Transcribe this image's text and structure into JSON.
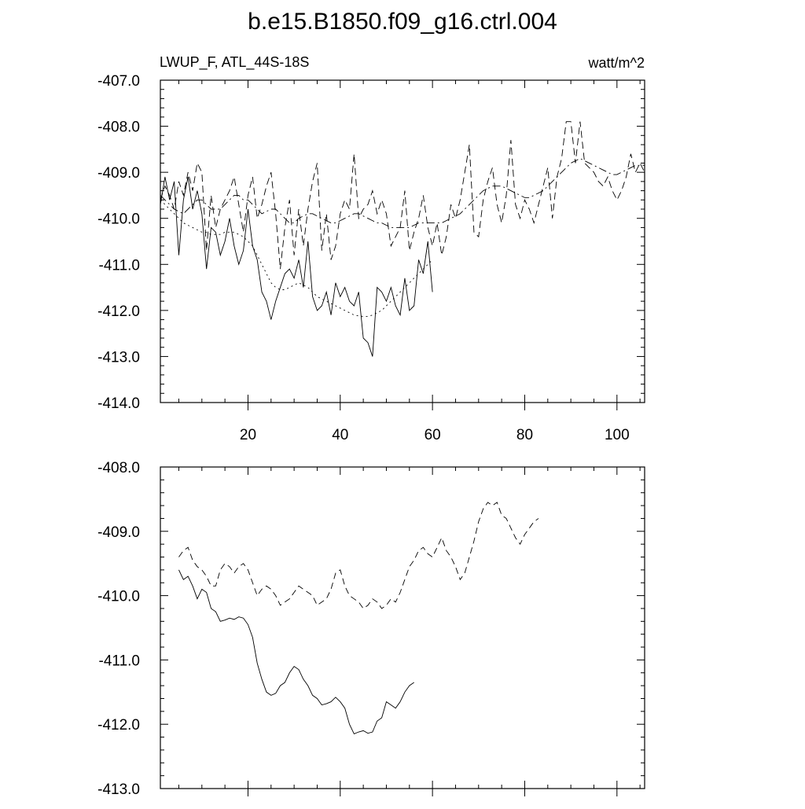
{
  "chart_data": [
    {
      "type": "line",
      "title": "b.e15.B1850.f09_g16.ctrl.004",
      "left_label": "LWUP_F, ATL_44S-18S",
      "right_label": "watt/m^2",
      "xlim": [
        1,
        106
      ],
      "ylim": [
        -414,
        -407
      ],
      "x_ticks": [
        20,
        40,
        60,
        80,
        100
      ],
      "y_ticks": [
        -414,
        -413,
        -412,
        -411,
        -410,
        -409,
        -408,
        -407
      ],
      "series": [
        {
          "style": "solid",
          "x_start": 1,
          "values": [
            -409.7,
            -409.1,
            -409.6,
            -409.2,
            -410.8,
            -409.6,
            -409.1,
            -409.8,
            -409.4,
            -409.9,
            -411.1,
            -410.2,
            -410.3,
            -410.8,
            -410.5,
            -410.0,
            -410.6,
            -411.0,
            -410.7,
            -409.8,
            -410.6,
            -410.9,
            -411.6,
            -411.8,
            -412.2,
            -411.8,
            -411.5,
            -411.2,
            -411.1,
            -411.3,
            -410.9,
            -411.5,
            -410.5,
            -411.7,
            -412.0,
            -411.9,
            -411.6,
            -412.1,
            -411.4,
            -411.7,
            -411.5,
            -411.8,
            -411.9,
            -411.6,
            -412.6,
            -412.7,
            -413.0,
            -411.5,
            -411.6,
            -411.8,
            -411.5,
            -411.9,
            -412.1,
            -411.3,
            -412.0,
            -411.9,
            -410.9,
            -411.2,
            -410.5,
            -411.6
          ]
        },
        {
          "style": "long-dash",
          "x_start": 1,
          "values": [
            -409.6,
            -409.3,
            -409.5,
            -409.8,
            -409.2,
            -409.5,
            -409.0,
            -409.4,
            -408.8,
            -409.0,
            -410.7,
            -409.5,
            -410.2,
            -409.8,
            -409.6,
            -409.4,
            -409.1,
            -409.7,
            -410.3,
            -409.5,
            -409.1,
            -410.0,
            -409.7,
            -409.3,
            -409.0,
            -409.9,
            -411.1,
            -410.2,
            -409.6,
            -410.8,
            -409.8,
            -410.6,
            -409.8,
            -409.2,
            -408.8,
            -410.7,
            -409.9,
            -410.9,
            -410.6,
            -409.9,
            -409.6,
            -409.8,
            -408.6,
            -410.0,
            -409.8,
            -409.7,
            -409.4,
            -409.9,
            -409.6,
            -409.9,
            -410.6,
            -410.4,
            -410.2,
            -409.4,
            -410.7,
            -410.3,
            -410.0,
            -409.5,
            -410.2,
            -410.6,
            -410.1,
            -410.8,
            -410.4,
            -409.7,
            -410.0,
            -409.6,
            -409.0,
            -408.4,
            -410.3,
            -410.4,
            -409.6,
            -409.2,
            -408.9,
            -409.7,
            -410.1,
            -409.5,
            -408.3,
            -409.7,
            -410.0,
            -409.6,
            -409.8,
            -410.1,
            -409.7,
            -409.3,
            -408.9,
            -410.0,
            -409.1,
            -408.7,
            -407.9,
            -407.9,
            -408.8,
            -407.9,
            -408.8,
            -408.9,
            -409.0,
            -409.2,
            -409.3,
            -409.1,
            -409.4,
            -409.6,
            -409.4,
            -409.1,
            -408.6,
            -409.0,
            -408.8,
            -409.0
          ]
        },
        {
          "style": "dash-dot",
          "x_start": 1,
          "values": [
            -409.5,
            -409.6,
            -409.7,
            -409.8,
            -409.85,
            -409.9,
            -409.8,
            -409.7,
            -409.6,
            -409.6,
            -409.7,
            -409.8,
            -409.8,
            -409.8,
            -409.7,
            -409.6,
            -409.5,
            -409.5,
            -409.6,
            -409.6,
            -409.7,
            -409.8,
            -409.9,
            -409.85,
            -409.8,
            -409.8,
            -409.9,
            -410.0,
            -410.1,
            -410.1,
            -410.0,
            -409.95,
            -409.9,
            -409.9,
            -409.95,
            -410.0,
            -410.05,
            -410.1,
            -410.1,
            -410.05,
            -410.0,
            -409.95,
            -409.9,
            -409.9,
            -409.95,
            -410.0,
            -410.05,
            -410.1,
            -410.1,
            -410.15,
            -410.2,
            -410.2,
            -410.2,
            -410.2,
            -410.2,
            -410.15,
            -410.1,
            -410.1,
            -410.1,
            -410.1,
            -410.1,
            -410.1,
            -410.05,
            -410.0,
            -409.95,
            -409.9,
            -409.8,
            -409.7,
            -409.6,
            -409.5,
            -409.4,
            -409.35,
            -409.3,
            -409.3,
            -409.3,
            -409.35,
            -409.4,
            -409.45,
            -409.5,
            -409.55,
            -409.55,
            -409.5,
            -409.45,
            -409.4,
            -409.3,
            -409.2,
            -409.1,
            -409.0,
            -408.9,
            -408.8,
            -408.75,
            -408.7,
            -408.75,
            -408.8,
            -408.85,
            -408.9,
            -408.95,
            -409.0,
            -409.05,
            -409.05,
            -409.0,
            -408.95,
            -408.9,
            -408.85,
            -408.85,
            -408.85
          ]
        },
        {
          "style": "dotted",
          "x_start": 1,
          "values": [
            -409.6,
            -409.7,
            -409.8,
            -409.9,
            -410.0,
            -410.1,
            -410.15,
            -410.2,
            -410.25,
            -410.3,
            -410.3,
            -410.35,
            -410.35,
            -410.35,
            -410.3,
            -410.3,
            -410.3,
            -410.35,
            -410.4,
            -410.5,
            -410.6,
            -410.8,
            -411.0,
            -411.2,
            -411.4,
            -411.5,
            -411.55,
            -411.55,
            -411.5,
            -411.45,
            -411.4,
            -411.45,
            -411.5,
            -411.6,
            -411.7,
            -411.75,
            -411.8,
            -411.85,
            -411.9,
            -411.95,
            -412.0,
            -412.05,
            -412.1,
            -412.12,
            -412.13,
            -412.13,
            -412.1,
            -412.05,
            -412.0,
            -411.9,
            -411.8,
            -411.7,
            -411.6,
            -411.5,
            -411.4,
            -411.3,
            -411.2,
            -411.1,
            -411.0,
            -410.9
          ]
        }
      ]
    },
    {
      "type": "line",
      "xlim": [
        1,
        106
      ],
      "ylim": [
        -413,
        -408
      ],
      "y_ticks": [
        -413,
        -412,
        -411,
        -410,
        -409,
        -408
      ],
      "series": [
        {
          "style": "solid",
          "x_start": 5,
          "values": [
            -409.6,
            -409.75,
            -409.7,
            -409.85,
            -410.05,
            -409.9,
            -409.95,
            -410.2,
            -410.25,
            -410.4,
            -410.38,
            -410.35,
            -410.37,
            -410.33,
            -410.35,
            -410.45,
            -410.65,
            -411.05,
            -411.3,
            -411.5,
            -411.55,
            -411.52,
            -411.4,
            -411.35,
            -411.2,
            -411.1,
            -411.15,
            -411.3,
            -411.4,
            -411.55,
            -411.6,
            -411.7,
            -411.68,
            -411.65,
            -411.58,
            -411.65,
            -411.75,
            -412.0,
            -412.15,
            -412.12,
            -412.1,
            -412.14,
            -412.12,
            -411.95,
            -411.9,
            -411.65,
            -411.7,
            -411.75,
            -411.65,
            -411.5,
            -411.4,
            -411.35
          ]
        },
        {
          "style": "dashed",
          "x_start": 5,
          "values": [
            -409.4,
            -409.3,
            -409.25,
            -409.45,
            -409.55,
            -409.6,
            -409.7,
            -409.85,
            -409.85,
            -409.6,
            -409.5,
            -409.55,
            -409.65,
            -409.55,
            -409.5,
            -409.6,
            -409.8,
            -410.0,
            -409.9,
            -409.85,
            -409.9,
            -410.0,
            -410.15,
            -410.1,
            -410.05,
            -409.95,
            -409.85,
            -409.9,
            -409.95,
            -410.0,
            -410.15,
            -410.1,
            -410.05,
            -409.9,
            -409.65,
            -409.6,
            -409.85,
            -410.0,
            -410.05,
            -410.1,
            -410.2,
            -410.15,
            -410.05,
            -410.1,
            -410.2,
            -410.15,
            -410.05,
            -410.1,
            -409.95,
            -409.75,
            -409.55,
            -409.45,
            -409.3,
            -409.25,
            -409.35,
            -409.4,
            -409.25,
            -409.1,
            -409.3,
            -409.4,
            -409.55,
            -409.75,
            -409.65,
            -409.4,
            -409.15,
            -408.85,
            -408.65,
            -408.55,
            -408.6,
            -408.55,
            -408.75,
            -408.8,
            -408.95,
            -409.1,
            -409.2,
            -409.05,
            -408.95,
            -408.85,
            -408.8
          ]
        }
      ]
    }
  ]
}
